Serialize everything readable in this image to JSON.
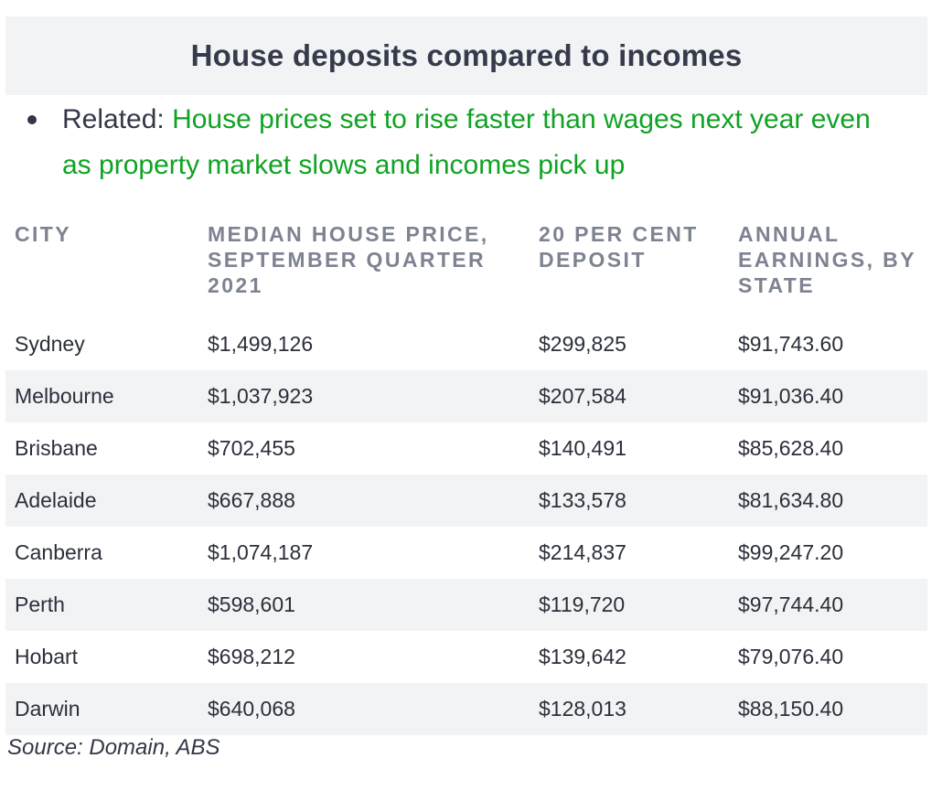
{
  "title": "House deposits compared to incomes",
  "related": {
    "prefix": "Related: ",
    "link_text": "House prices set to rise faster than wages next year even as property market slows and incomes pick up"
  },
  "table": {
    "headers": [
      "CITY",
      "MEDIAN HOUSE PRICE, SEPTEMBER QUARTER 2021",
      "20 PER CENT DEPOSIT",
      "ANNUAL EARNINGS, BY STATE"
    ],
    "rows": [
      [
        "Sydney",
        "$1,499,126",
        "$299,825",
        "$91,743.60"
      ],
      [
        "Melbourne",
        "$1,037,923",
        "$207,584",
        "$91,036.40"
      ],
      [
        "Brisbane",
        "$702,455",
        "$140,491",
        "$85,628.40"
      ],
      [
        "Adelaide",
        "$667,888",
        "$133,578",
        "$81,634.80"
      ],
      [
        "Canberra",
        "$1,074,187",
        "$214,837",
        "$99,247.20"
      ],
      [
        "Perth",
        "$598,601",
        "$119,720",
        "$97,744.40"
      ],
      [
        "Hobart",
        "$698,212",
        "$139,642",
        "$79,076.40"
      ],
      [
        "Darwin",
        "$640,068",
        "$128,013",
        "$88,150.40"
      ]
    ]
  },
  "source": "Source: Domain, ABS",
  "colors": {
    "link": "#0fa323",
    "stripe": "#f2f3f5",
    "header_text": "#7d8390"
  }
}
